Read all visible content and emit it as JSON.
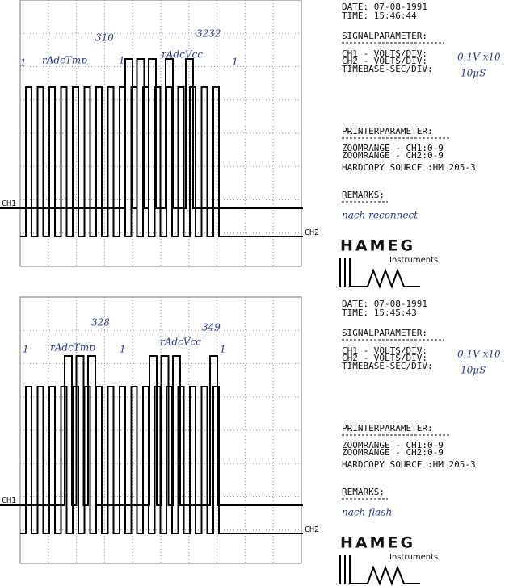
{
  "panels": [
    {
      "date": "DATE: 07-08-1991",
      "time": "TIME: 15:46:44",
      "signal_heading": "SIGNALPARAMETER:",
      "ch1_param": "CH1 -   VOLTS/DIV:",
      "ch2_param": "CH2 -   VOLTS/DIV:",
      "timebase": "TIMEBASE-SEC/DIV:",
      "volts_note": "0,1V x10",
      "time_note": "10µS",
      "printer_heading": "PRINTERPARAMETER:",
      "zoom_ch1": "ZOOMRANGE  - CH1:0-9",
      "zoom_ch2": "ZOOMRANGE  - CH2:0-9",
      "hardcopy": "HARDCOPY SOURCE :HM 205-3",
      "remarks_heading": "REMARKS:",
      "remark": "nach reconnect",
      "ch1_label": "CH1",
      "ch2_label": "CH2",
      "logo": "HAMEG",
      "logo_sub": "Instruments",
      "annotations": [
        "1",
        "rAdcTmp",
        "310",
        "1",
        "rAdcVcc",
        "3232",
        "1"
      ]
    },
    {
      "date": "DATE: 07-08-1991",
      "time": "TIME: 15:45:43",
      "signal_heading": "SIGNALPARAMETER:",
      "ch1_param": "CH1 -   VOLTS/DIV:",
      "ch2_param": "CH2 -   VOLTS/DIV:",
      "timebase": "TIMEBASE-SEC/DIV:",
      "volts_note": "0,1V x10",
      "time_note": "10µS",
      "printer_heading": "PRINTERPARAMETER:",
      "zoom_ch1": "ZOOMRANGE  - CH1:0-9",
      "zoom_ch2": "ZOOMRANGE  - CH2:0-9",
      "hardcopy": "HARDCOPY SOURCE :HM 205-3",
      "remarks_heading": "REMARKS:",
      "remark": "nach flash",
      "ch1_label": "CH1",
      "ch2_label": "CH2",
      "logo": "HAMEG",
      "logo_sub": "Instruments",
      "annotations": [
        "1",
        "rAdcTmp",
        "328",
        "1",
        "rAdcVcc",
        "349",
        "1"
      ]
    }
  ]
}
